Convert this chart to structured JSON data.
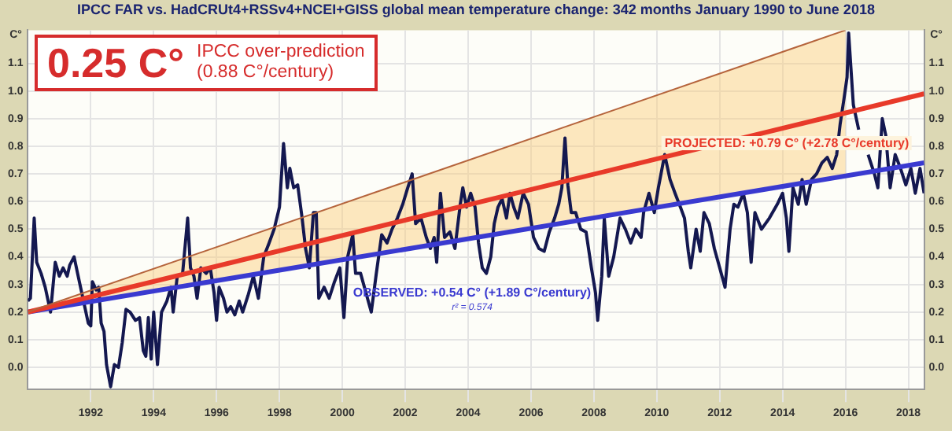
{
  "chart_data": {
    "type": "line",
    "title": "IPCC FAR vs. HadCRUt4+RSSv4+NCEI+GISS global mean temperature change: 342 months January 1990 to June 2018",
    "ylabel": "C°",
    "y2label": "C°",
    "annotations": [
      "0.25 C°",
      "IPCC over-prediction",
      "(0.88 C°/century)",
      "OBSERVED: +0.54 C° (+1.89 C°/century)",
      "r² = 0.574",
      "PROJECTED: +0.79 C° (+2.78 C°/century)"
    ],
    "xlim": [
      1990,
      2018.5
    ],
    "xticks": [
      1992,
      1994,
      1996,
      1998,
      2000,
      2002,
      2004,
      2006,
      2008,
      2010,
      2012,
      2014,
      2016,
      2018
    ],
    "ylim": [
      -0.08,
      1.22
    ],
    "yticks": [
      {
        "value": 0,
        "label": "0.0"
      },
      {
        "value": 0.1,
        "label": "0.1"
      },
      {
        "value": 0.2,
        "label": "0.2"
      },
      {
        "value": 0.3,
        "label": "0.3"
      },
      {
        "value": 0.4,
        "label": "0.4"
      },
      {
        "value": 0.5,
        "label": "0.5"
      },
      {
        "value": 0.6,
        "label": "0.6"
      },
      {
        "value": 0.7,
        "label": "0.7"
      },
      {
        "value": 0.8,
        "label": "0.8"
      },
      {
        "value": 0.9,
        "label": "0.9"
      },
      {
        "value": 1,
        "label": "1.0"
      },
      {
        "value": 1.1,
        "label": "1.1"
      }
    ],
    "y2lim": [
      -0.08,
      1.22
    ],
    "y2ticks": [
      {
        "value": 0,
        "label": "0.0"
      },
      {
        "value": 0.1,
        "label": "0.1"
      },
      {
        "value": 0.2,
        "label": "0.2"
      },
      {
        "value": 0.3,
        "label": "0.3"
      },
      {
        "value": 0.4,
        "label": "0.4"
      },
      {
        "value": 0.5,
        "label": "0.5"
      },
      {
        "value": 0.6,
        "label": "0.6"
      },
      {
        "value": 0.7,
        "label": "0.7"
      },
      {
        "value": 0.8,
        "label": "0.8"
      },
      {
        "value": 0.9,
        "label": "0.9"
      },
      {
        "value": 1,
        "label": "1.0"
      },
      {
        "value": 1.1,
        "label": "1.1"
      }
    ],
    "grid": true,
    "legend": false,
    "marker": "none",
    "line_style": "solid",
    "series": [
      {
        "color": "#b5643c",
        "x": [
          1990,
          2016
        ],
        "values": [
          0.2,
          1.22
        ],
        "lower": [
          0.2,
          0.69
        ],
        "upper": [
          0.2,
          1.22
        ]
      },
      {
        "color": "#e83a2a",
        "x": [
          1990,
          2018.5
        ],
        "values": [
          0.2,
          0.99
        ]
      },
      {
        "color": "#3a3ad0",
        "x": [
          1990,
          2018.5
        ],
        "values": [
          0.2,
          0.74
        ]
      },
      {
        "color": "#141850",
        "x": [
          1990.0,
          1990.08,
          1990.2,
          1990.28,
          1990.42,
          1990.55,
          1990.72,
          1990.87,
          1991.0,
          1991.12,
          1991.25,
          1991.33,
          1991.47,
          1991.58,
          1991.75,
          1991.92,
          1992.0,
          1992.05,
          1992.17,
          1992.25,
          1992.33,
          1992.42,
          1992.5,
          1992.63,
          1992.75,
          1992.88,
          1993.0,
          1993.12,
          1993.25,
          1993.42,
          1993.55,
          1993.67,
          1993.75,
          1993.83,
          1993.92,
          1994.0,
          1994.12,
          1994.25,
          1994.42,
          1994.55,
          1994.62,
          1994.75,
          1994.92,
          1995.08,
          1995.17,
          1995.28,
          1995.38,
          1995.5,
          1995.67,
          1995.8,
          1995.92,
          1996.0,
          1996.08,
          1996.22,
          1996.33,
          1996.45,
          1996.58,
          1996.72,
          1996.83,
          1997.0,
          1997.17,
          1997.33,
          1997.5,
          1997.67,
          1997.83,
          1998.0,
          1998.13,
          1998.25,
          1998.33,
          1998.45,
          1998.58,
          1998.72,
          1998.83,
          1998.95,
          1999.08,
          1999.17,
          1999.25,
          1999.42,
          1999.58,
          1999.75,
          1999.92,
          2000.05,
          2000.17,
          2000.33,
          2000.42,
          2000.58,
          2000.75,
          2000.92,
          2001.08,
          2001.25,
          2001.42,
          2001.58,
          2001.75,
          2001.92,
          2002.08,
          2002.22,
          2002.33,
          2002.5,
          2002.67,
          2002.8,
          2002.92,
          2003.0,
          2003.12,
          2003.25,
          2003.42,
          2003.58,
          2003.75,
          2003.83,
          2003.95,
          2004.08,
          2004.22,
          2004.33,
          2004.45,
          2004.58,
          2004.72,
          2004.83,
          2004.95,
          2005.08,
          2005.22,
          2005.33,
          2005.45,
          2005.58,
          2005.75,
          2005.92,
          2006.08,
          2006.25,
          2006.42,
          2006.58,
          2006.75,
          2006.88,
          2006.98,
          2007.08,
          2007.17,
          2007.28,
          2007.42,
          2007.58,
          2007.75,
          2007.92,
          2008.05,
          2008.12,
          2008.25,
          2008.33,
          2008.47,
          2008.63,
          2008.83,
          2009.0,
          2009.17,
          2009.33,
          2009.5,
          2009.58,
          2009.75,
          2009.92,
          2010.05,
          2010.25,
          2010.42,
          2010.58,
          2010.75,
          2010.88,
          2011.0,
          2011.08,
          2011.25,
          2011.38,
          2011.5,
          2011.67,
          2011.83,
          2012.0,
          2012.17,
          2012.33,
          2012.45,
          2012.58,
          2012.75,
          2012.88,
          2013.0,
          2013.12,
          2013.33,
          2013.58,
          2013.83,
          2014.0,
          2014.12,
          2014.2,
          2014.33,
          2014.5,
          2014.62,
          2014.75,
          2014.92,
          2015.08,
          2015.25,
          2015.42,
          2015.58,
          2015.72,
          2015.83,
          2015.95,
          2016.05,
          2016.1,
          2016.25,
          2016.42,
          2016.55,
          2016.72,
          2016.92,
          2017.03,
          2017.17,
          2017.28,
          2017.42,
          2017.58,
          2017.75,
          2017.92,
          2018.08,
          2018.22,
          2018.37,
          2018.5
        ],
        "values": [
          0.24,
          0.25,
          0.54,
          0.38,
          0.34,
          0.29,
          0.2,
          0.38,
          0.33,
          0.36,
          0.33,
          0.37,
          0.4,
          0.34,
          0.25,
          0.16,
          0.15,
          0.31,
          0.28,
          0.29,
          0.16,
          0.13,
          0.01,
          -0.07,
          0.01,
          0.0,
          0.09,
          0.21,
          0.2,
          0.17,
          0.18,
          0.06,
          0.04,
          0.18,
          0.03,
          0.2,
          0.01,
          0.2,
          0.24,
          0.29,
          0.2,
          0.33,
          0.34,
          0.54,
          0.36,
          0.33,
          0.25,
          0.36,
          0.34,
          0.36,
          0.27,
          0.17,
          0.29,
          0.25,
          0.2,
          0.22,
          0.19,
          0.24,
          0.2,
          0.26,
          0.33,
          0.25,
          0.4,
          0.45,
          0.5,
          0.58,
          0.81,
          0.65,
          0.72,
          0.65,
          0.66,
          0.54,
          0.43,
          0.36,
          0.56,
          0.56,
          0.25,
          0.29,
          0.25,
          0.31,
          0.36,
          0.18,
          0.4,
          0.48,
          0.34,
          0.34,
          0.27,
          0.2,
          0.34,
          0.48,
          0.45,
          0.5,
          0.54,
          0.59,
          0.65,
          0.7,
          0.52,
          0.54,
          0.47,
          0.43,
          0.47,
          0.38,
          0.63,
          0.47,
          0.49,
          0.43,
          0.59,
          0.65,
          0.58,
          0.63,
          0.58,
          0.45,
          0.36,
          0.34,
          0.4,
          0.52,
          0.58,
          0.61,
          0.54,
          0.63,
          0.58,
          0.54,
          0.63,
          0.59,
          0.47,
          0.43,
          0.42,
          0.49,
          0.54,
          0.59,
          0.65,
          0.83,
          0.66,
          0.56,
          0.56,
          0.5,
          0.49,
          0.36,
          0.27,
          0.17,
          0.33,
          0.54,
          0.33,
          0.4,
          0.54,
          0.5,
          0.45,
          0.5,
          0.47,
          0.56,
          0.63,
          0.56,
          0.65,
          0.77,
          0.68,
          0.63,
          0.58,
          0.54,
          0.42,
          0.36,
          0.5,
          0.42,
          0.56,
          0.52,
          0.43,
          0.36,
          0.29,
          0.5,
          0.59,
          0.58,
          0.63,
          0.56,
          0.38,
          0.56,
          0.5,
          0.54,
          0.59,
          0.63,
          0.54,
          0.42,
          0.65,
          0.59,
          0.68,
          0.59,
          0.68,
          0.7,
          0.74,
          0.76,
          0.72,
          0.77,
          0.88,
          0.97,
          1.05,
          1.21,
          0.95,
          0.86,
          null,
          0.77,
          0.7,
          0.65,
          0.9,
          0.84,
          0.65,
          0.77,
          0.72,
          0.66,
          0.72,
          0.63,
          0.72,
          0.63
        ]
      }
    ]
  }
}
